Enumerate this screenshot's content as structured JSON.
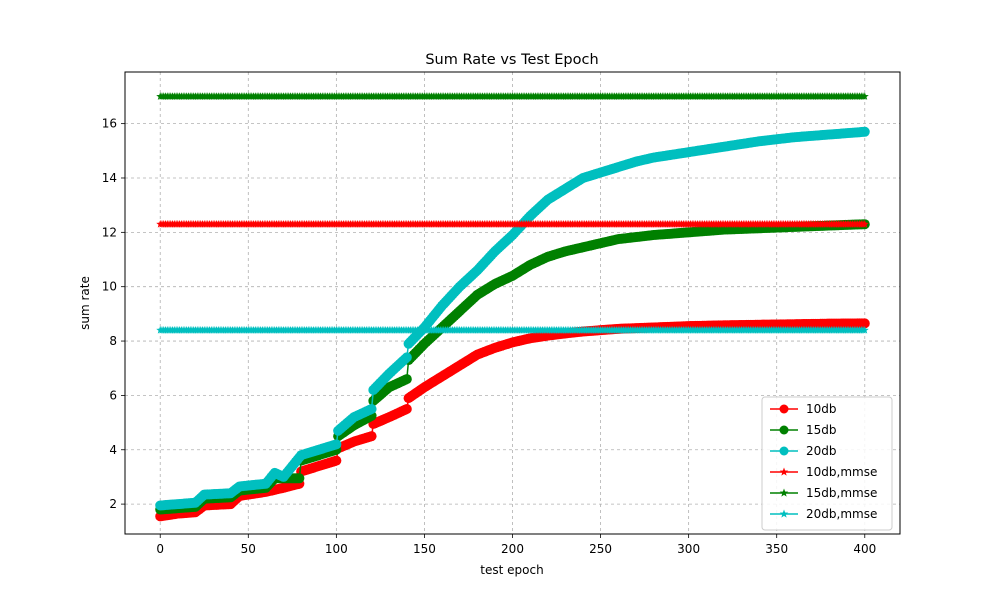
{
  "chart_data": {
    "type": "line",
    "title": "Sum Rate vs Test Epoch",
    "xlabel": "test epoch",
    "ylabel": "sum rate",
    "xlim": [
      -20,
      420
    ],
    "ylim": [
      0.9,
      17.9
    ],
    "xticks": [
      0,
      50,
      100,
      150,
      200,
      250,
      300,
      350,
      400
    ],
    "yticks": [
      2,
      4,
      6,
      8,
      10,
      12,
      14,
      16
    ],
    "grid": true,
    "legend_position": "bottom-right",
    "series": [
      {
        "name": "10db",
        "color": "#ff0000",
        "marker": "circle",
        "x": [
          0,
          10,
          20,
          25,
          40,
          45,
          60,
          70,
          79,
          80,
          90,
          100,
          101,
          110,
          120,
          121,
          130,
          140,
          141,
          150,
          160,
          170,
          180,
          190,
          200,
          210,
          220,
          230,
          240,
          250,
          260,
          280,
          300,
          320,
          340,
          360,
          380,
          400
        ],
        "values": [
          1.55,
          1.65,
          1.7,
          1.95,
          2.0,
          2.3,
          2.45,
          2.6,
          2.75,
          3.2,
          3.4,
          3.6,
          4.05,
          4.3,
          4.5,
          4.95,
          5.2,
          5.5,
          5.9,
          6.3,
          6.7,
          7.1,
          7.5,
          7.75,
          7.95,
          8.1,
          8.2,
          8.28,
          8.35,
          8.4,
          8.45,
          8.5,
          8.55,
          8.58,
          8.6,
          8.62,
          8.64,
          8.65
        ]
      },
      {
        "name": "15db",
        "color": "#008000",
        "marker": "circle",
        "x": [
          0,
          10,
          20,
          25,
          40,
          45,
          60,
          65,
          79,
          80,
          90,
          100,
          101,
          110,
          120,
          121,
          130,
          140,
          141,
          150,
          160,
          170,
          180,
          190,
          200,
          210,
          220,
          230,
          240,
          250,
          260,
          280,
          300,
          320,
          340,
          360,
          380,
          400
        ],
        "values": [
          1.8,
          1.85,
          1.9,
          2.2,
          2.25,
          2.5,
          2.6,
          2.95,
          2.95,
          3.6,
          3.8,
          4.0,
          4.5,
          4.9,
          5.25,
          5.8,
          6.3,
          6.6,
          7.3,
          7.9,
          8.5,
          9.1,
          9.7,
          10.1,
          10.4,
          10.8,
          11.1,
          11.3,
          11.45,
          11.6,
          11.75,
          11.9,
          12.0,
          12.1,
          12.15,
          12.2,
          12.25,
          12.3
        ]
      },
      {
        "name": "20db",
        "color": "#00bfbf",
        "marker": "circle",
        "x": [
          0,
          10,
          20,
          25,
          40,
          45,
          60,
          65,
          70,
          80,
          90,
          100,
          101,
          110,
          120,
          121,
          130,
          140,
          141,
          150,
          160,
          170,
          180,
          190,
          200,
          210,
          220,
          230,
          240,
          250,
          260,
          270,
          280,
          300,
          320,
          340,
          360,
          380,
          400
        ],
        "values": [
          1.95,
          2.0,
          2.05,
          2.35,
          2.4,
          2.65,
          2.75,
          3.15,
          3.0,
          3.8,
          4.0,
          4.2,
          4.7,
          5.2,
          5.5,
          6.2,
          6.8,
          7.4,
          7.9,
          8.5,
          9.3,
          10.0,
          10.6,
          11.3,
          11.9,
          12.6,
          13.2,
          13.6,
          14.0,
          14.2,
          14.4,
          14.6,
          14.75,
          14.95,
          15.15,
          15.35,
          15.5,
          15.6,
          15.7
        ]
      },
      {
        "name": "10db,mmse",
        "color": "#ff0000",
        "marker": "star",
        "x": [
          0,
          400
        ],
        "values": [
          12.3,
          12.3
        ]
      },
      {
        "name": "15db,mmse",
        "color": "#008000",
        "marker": "star",
        "x": [
          0,
          400
        ],
        "values": [
          17.0,
          17.0
        ]
      },
      {
        "name": "20db,mmse",
        "color": "#00bfbf",
        "marker": "star",
        "x": [
          0,
          400
        ],
        "values": [
          8.4,
          8.4
        ]
      }
    ]
  }
}
